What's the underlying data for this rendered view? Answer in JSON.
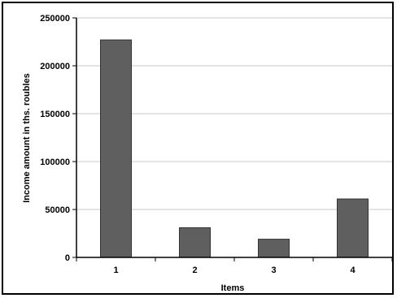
{
  "chart_data": {
    "type": "bar",
    "categories": [
      "1",
      "2",
      "3",
      "4"
    ],
    "values": [
      227000,
      31000,
      19000,
      61000
    ],
    "xlabel": "Items",
    "ylabel": "Income amount in ths. roubles",
    "ylim": [
      0,
      250000
    ],
    "yticks": [
      "0",
      "50000",
      "100000",
      "150000",
      "200000",
      "250000"
    ],
    "grid": true,
    "legend": "none",
    "colors": {
      "bar": "#5f5f5f",
      "bar_stroke": "#333333",
      "grid": "#c8c8c8",
      "axis": "#000000"
    }
  }
}
